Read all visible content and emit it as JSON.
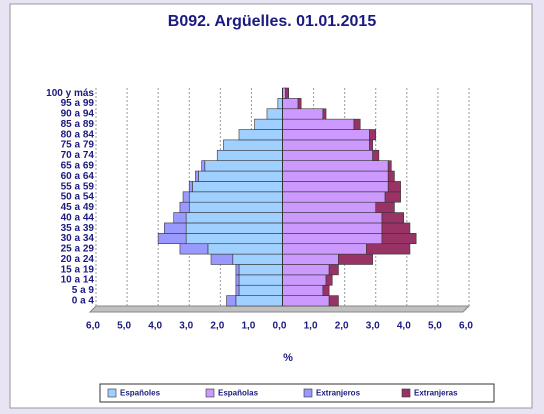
{
  "chart_data": {
    "type": "pyramid",
    "title": "B092. Argüelles. 01.01.2015",
    "x_label": "%",
    "categories": [
      "0 a 4",
      "5 a 9",
      "10 a 14",
      "15 a 19",
      "20 a 24",
      "25 a 29",
      "30 a 34",
      "35 a 39",
      "40 a 44",
      "45 a 49",
      "50 a 54",
      "55 a 59",
      "60 a 64",
      "65 a 69",
      "70 a 74",
      "75 a 79",
      "80 a 84",
      "85 a 89",
      "90 a 94",
      "95 a 99",
      "100 y más"
    ],
    "series": [
      {
        "name": "Españoles",
        "color": "#9fd0ff",
        "side": "left",
        "values": [
          1.5,
          1.4,
          1.4,
          1.4,
          1.6,
          2.4,
          3.1,
          3.1,
          3.1,
          3.0,
          3.0,
          2.9,
          2.7,
          2.5,
          2.1,
          1.9,
          1.4,
          0.9,
          0.5,
          0.15,
          0.0
        ]
      },
      {
        "name": "Españolas",
        "color": "#cc99ff",
        "side": "right",
        "values": [
          1.5,
          1.3,
          1.4,
          1.5,
          1.8,
          2.7,
          3.2,
          3.2,
          3.2,
          3.0,
          3.3,
          3.4,
          3.4,
          3.4,
          2.9,
          2.8,
          2.8,
          2.3,
          1.3,
          0.5,
          0.1
        ]
      },
      {
        "name": "Extranjeros",
        "color": "#9999ff",
        "side": "left",
        "values": [
          0.3,
          0.1,
          0.1,
          0.1,
          0.7,
          0.9,
          0.9,
          0.7,
          0.4,
          0.3,
          0.2,
          0.1,
          0.1,
          0.1,
          0.0,
          0.0,
          0.0,
          0.0,
          0.0,
          0.0,
          0.0
        ]
      },
      {
        "name": "Extranjeras",
        "color": "#993366",
        "side": "right",
        "values": [
          0.3,
          0.2,
          0.2,
          0.3,
          1.1,
          1.4,
          1.1,
          0.9,
          0.7,
          0.6,
          0.5,
          0.4,
          0.2,
          0.1,
          0.2,
          0.1,
          0.2,
          0.2,
          0.1,
          0.1,
          0.1
        ]
      }
    ],
    "xlim": [
      -6,
      6
    ],
    "xticks": [
      {
        "value": -6,
        "label": "6,0"
      },
      {
        "value": -5,
        "label": "5,0"
      },
      {
        "value": -4,
        "label": "4,0"
      },
      {
        "value": -3,
        "label": "3,0"
      },
      {
        "value": -2,
        "label": "2,0"
      },
      {
        "value": -1,
        "label": "1,0"
      },
      {
        "value": 0,
        "label": "0,0"
      },
      {
        "value": 1,
        "label": "1,0"
      },
      {
        "value": 2,
        "label": "2,0"
      },
      {
        "value": 3,
        "label": "3,0"
      },
      {
        "value": 4,
        "label": "4,0"
      },
      {
        "value": 5,
        "label": "5,0"
      },
      {
        "value": 6,
        "label": "6,0"
      }
    ],
    "grid": true
  }
}
